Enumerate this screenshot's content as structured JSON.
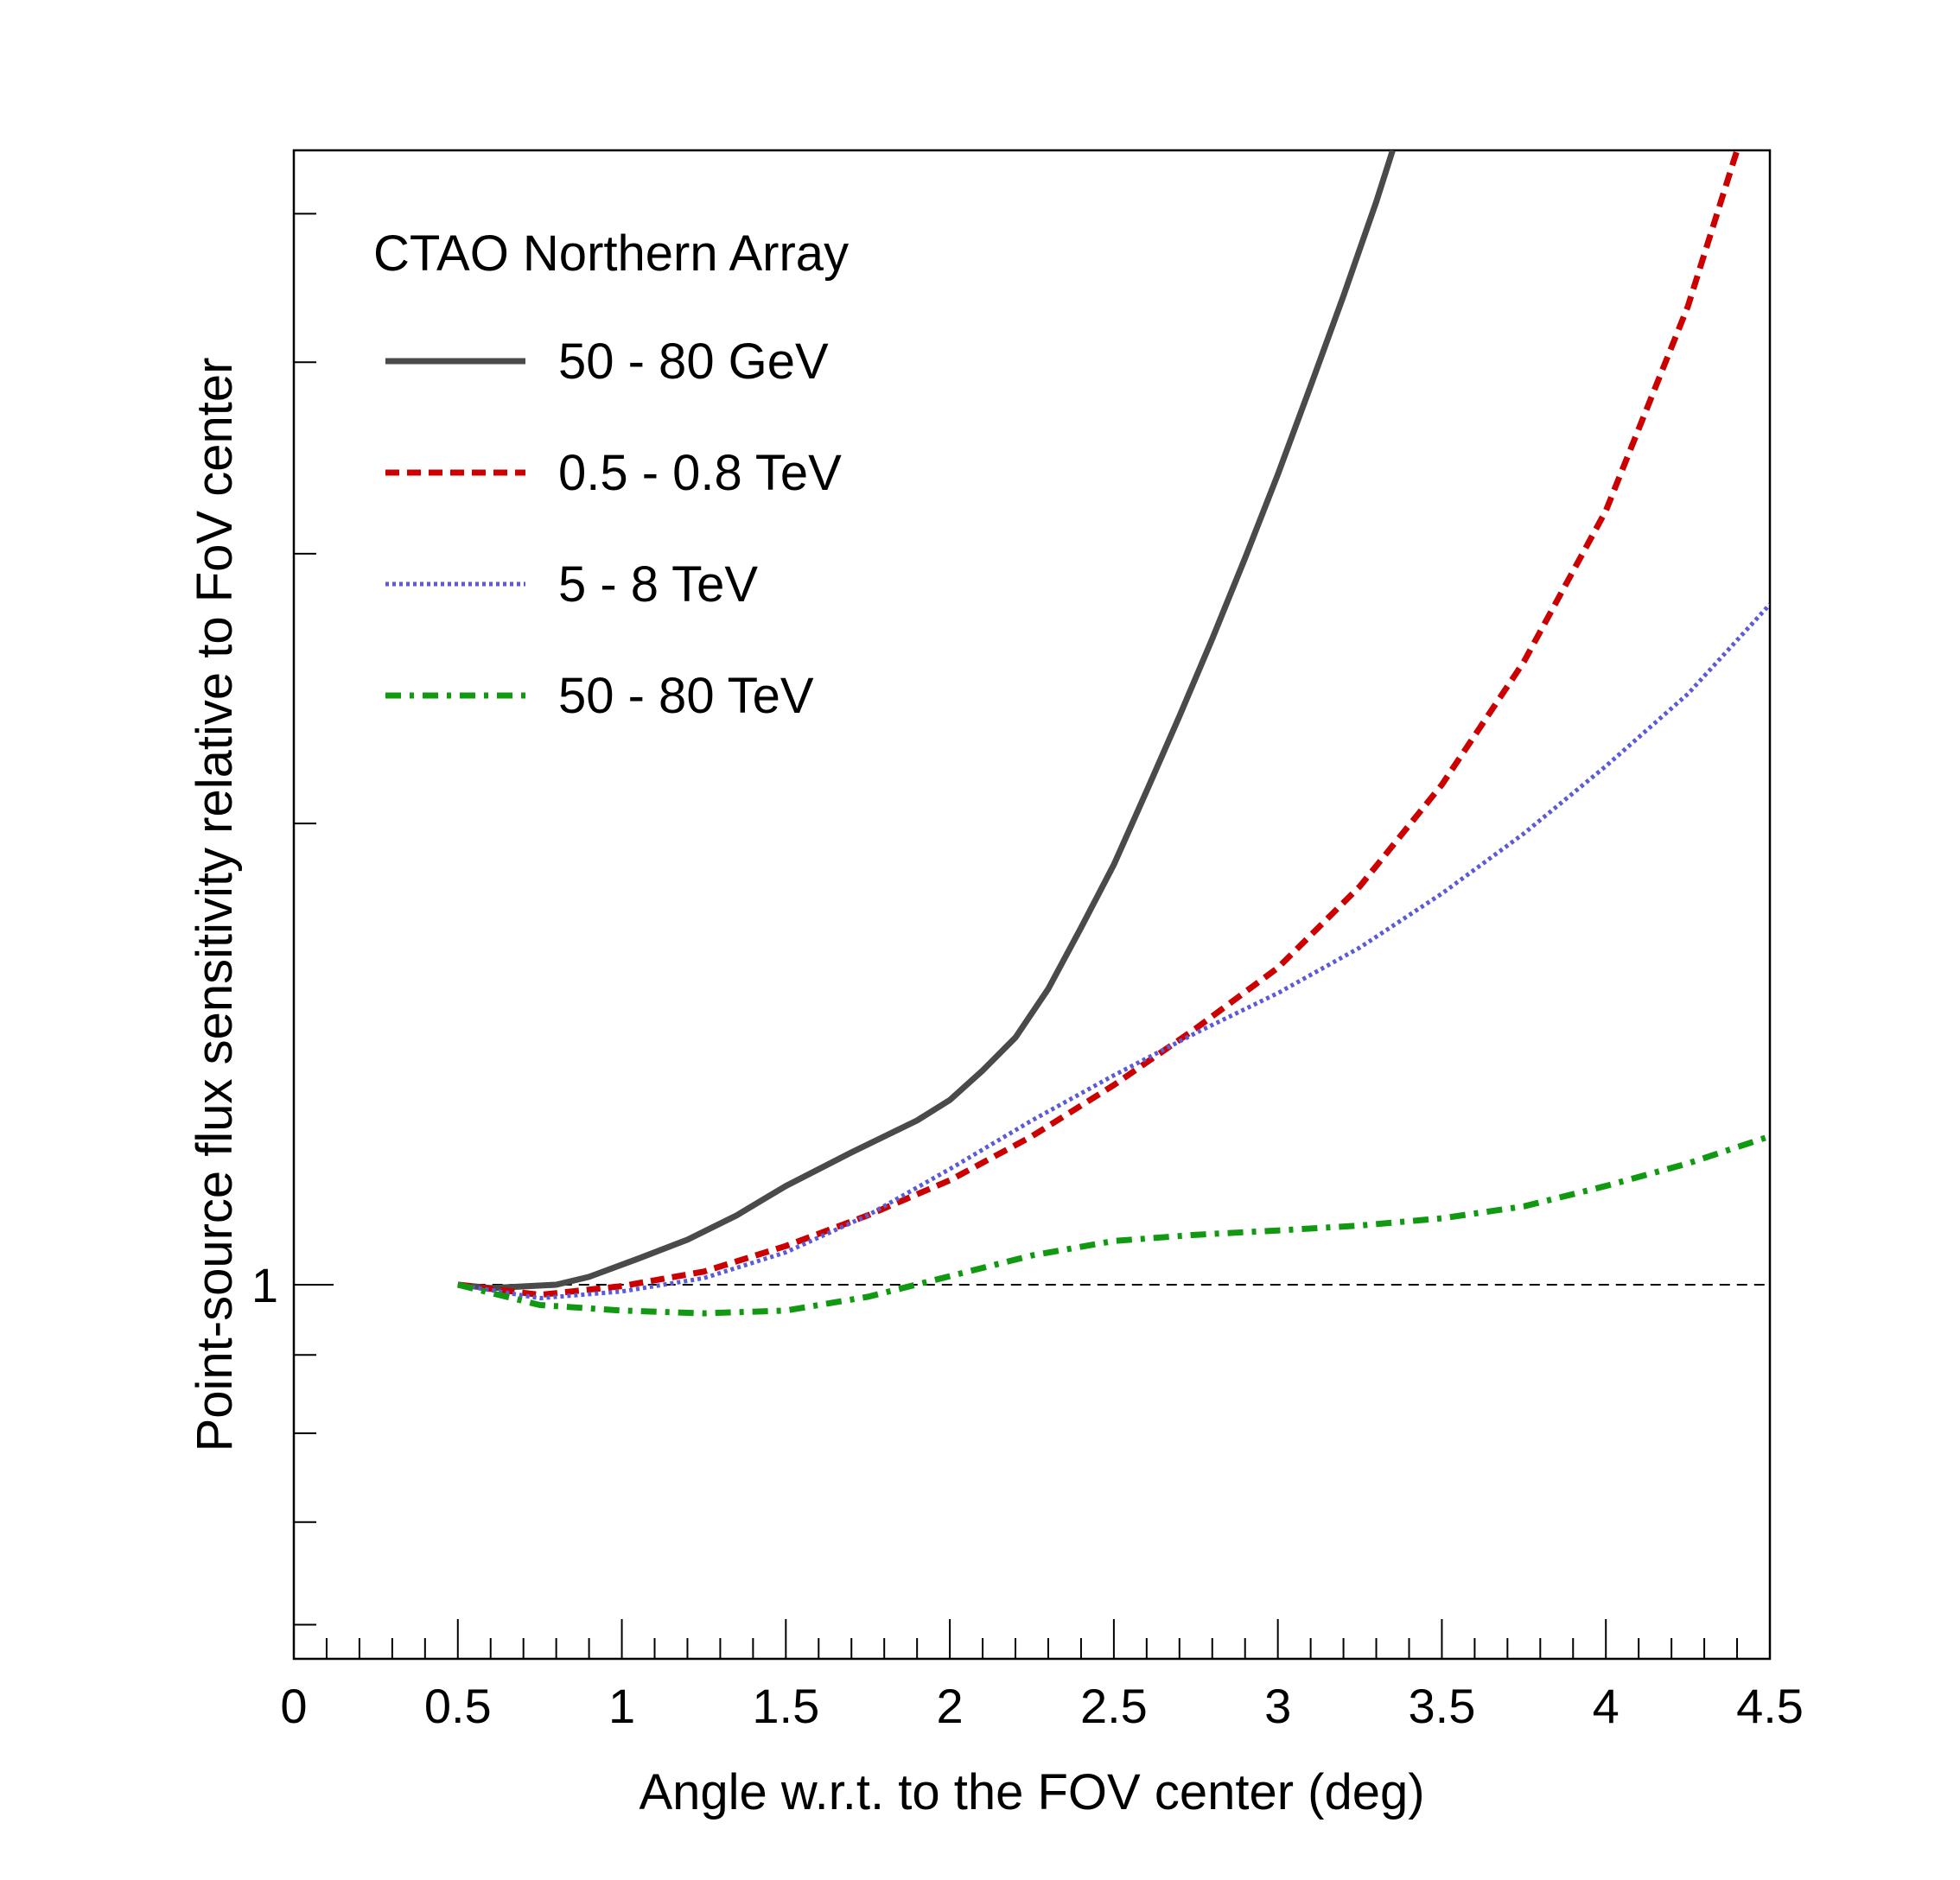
{
  "chart_data": {
    "type": "line",
    "title": "",
    "legend_title": "CTAO Northern Array",
    "legend_placement": "top-left",
    "xlabel": "Angle w.r.t. to the FOV center (deg)",
    "ylabel": "Point-source flux sensitivity relative to FoV center",
    "xlim": [
      0,
      4.5
    ],
    "ylim": [
      0.57,
      5.5
    ],
    "y_scale": "log",
    "grid": false,
    "x_ticks": [
      "0",
      "0.5",
      "1",
      "1.5",
      "2",
      "2.5",
      "3",
      "3.5",
      "4",
      "4.5"
    ],
    "y_tick_labels": [
      "1"
    ],
    "reference_line": {
      "y": 1.0,
      "style": "dashed"
    },
    "series": [
      {
        "name": "50 - 80 GeV",
        "color": "#4a4a4a",
        "style": "solid",
        "x": [
          0.5,
          0.6,
          0.8,
          0.9,
          1.05,
          1.2,
          1.35,
          1.5,
          1.7,
          1.9,
          2.0,
          2.1,
          2.2,
          2.3,
          2.4,
          2.5,
          2.6,
          2.7,
          2.8,
          2.9,
          3.0,
          3.1,
          3.2,
          3.3,
          3.35
        ],
        "y": [
          1.0,
          0.995,
          1.0,
          1.012,
          1.04,
          1.07,
          1.11,
          1.16,
          1.22,
          1.28,
          1.32,
          1.38,
          1.45,
          1.56,
          1.71,
          1.88,
          2.1,
          2.35,
          2.64,
          2.98,
          3.38,
          3.86,
          4.42,
          5.09,
          5.5
        ]
      },
      {
        "name": "0.5 - 0.8 TeV",
        "color": "#cc0000",
        "style": "dashed",
        "x": [
          0.5,
          0.75,
          1.0,
          1.25,
          1.5,
          1.75,
          2.0,
          2.25,
          2.5,
          2.75,
          3.0,
          3.25,
          3.5,
          3.75,
          4.0,
          4.25,
          4.4
        ],
        "y": [
          1.0,
          0.985,
          0.998,
          1.02,
          1.06,
          1.11,
          1.17,
          1.25,
          1.35,
          1.47,
          1.61,
          1.82,
          2.12,
          2.55,
          3.2,
          4.35,
          5.5
        ]
      },
      {
        "name": "5 - 8 TeV",
        "color": "#5b5bd6",
        "style": "dotted",
        "x": [
          0.5,
          0.75,
          1.0,
          1.25,
          1.5,
          1.75,
          2.0,
          2.25,
          2.5,
          2.75,
          3.0,
          3.25,
          3.5,
          3.75,
          4.0,
          4.25,
          4.5
        ],
        "y": [
          1.0,
          0.98,
          0.99,
          1.01,
          1.05,
          1.11,
          1.19,
          1.28,
          1.37,
          1.46,
          1.55,
          1.66,
          1.8,
          1.97,
          2.18,
          2.43,
          2.78
        ]
      },
      {
        "name": "50 - 80 TeV",
        "color": "#119911",
        "style": "dash-dot",
        "x": [
          0.5,
          0.75,
          1.0,
          1.25,
          1.5,
          1.75,
          2.0,
          2.25,
          2.5,
          2.75,
          3.0,
          3.25,
          3.5,
          3.75,
          4.0,
          4.25,
          4.5
        ],
        "y": [
          1.0,
          0.97,
          0.962,
          0.958,
          0.962,
          0.982,
          1.013,
          1.045,
          1.068,
          1.078,
          1.085,
          1.093,
          1.105,
          1.125,
          1.16,
          1.2,
          1.25
        ]
      }
    ]
  }
}
